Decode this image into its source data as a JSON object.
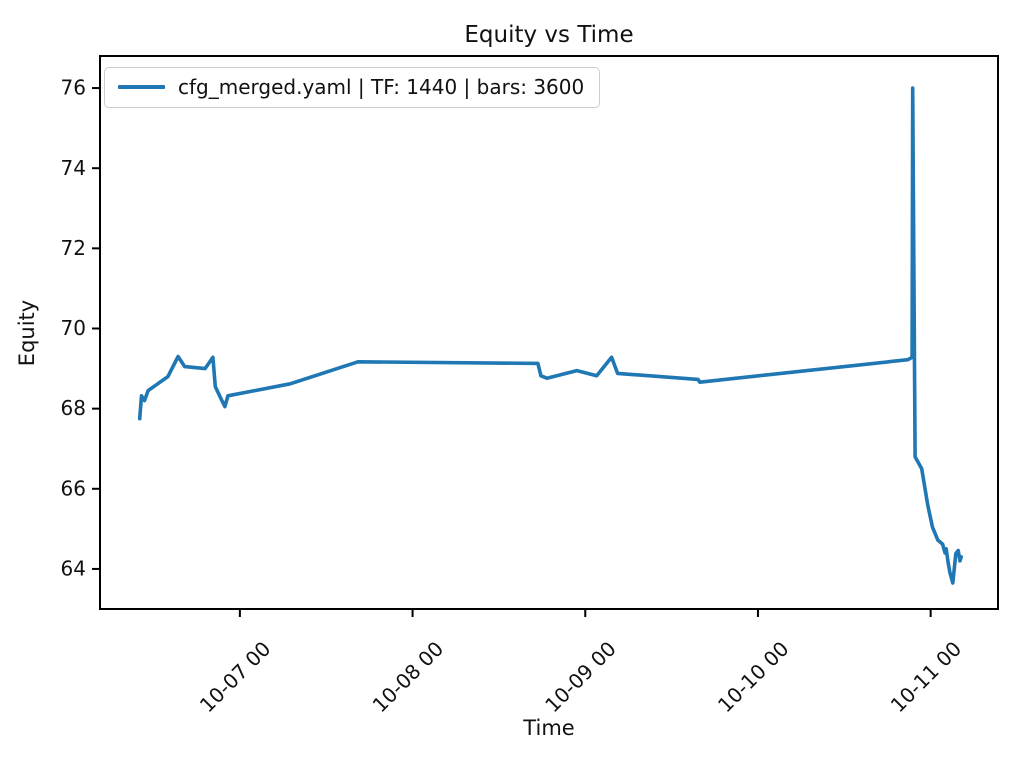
{
  "chart_data": {
    "type": "line",
    "title": "Equity vs Time",
    "xlabel": "Time",
    "ylabel": "Equity",
    "grid": false,
    "legend": {
      "position": "upper left",
      "entries": [
        "cfg_merged.yaml | TF: 1440 | bars: 3600"
      ]
    },
    "x_ticks": [
      {
        "day": 7,
        "label": "10-07 00"
      },
      {
        "day": 8,
        "label": "10-08 00"
      },
      {
        "day": 9,
        "label": "10-09 00"
      },
      {
        "day": 10,
        "label": "10-10 00"
      },
      {
        "day": 11,
        "label": "10-11 00"
      }
    ],
    "y_ticks": [
      64,
      66,
      68,
      70,
      72,
      74,
      76
    ],
    "xlim_days": [
      6.19,
      11.39
    ],
    "ylim": [
      63.0,
      76.8
    ],
    "series": [
      {
        "name": "cfg_merged.yaml | TF: 1440 | bars: 3600",
        "color": "#1f77b4",
        "points": [
          [
            "10-06 10:05",
            67.75
          ],
          [
            "10-06 10:20",
            68.32
          ],
          [
            "10-06 10:45",
            68.2
          ],
          [
            "10-06 11:15",
            68.45
          ],
          [
            "10-06 12:35",
            68.62
          ],
          [
            "10-06 14:00",
            68.8
          ],
          [
            "10-06 15:25",
            69.3
          ],
          [
            "10-06 16:20",
            69.05
          ],
          [
            "10-06 19:10",
            69.0
          ],
          [
            "10-06 20:15",
            69.28
          ],
          [
            "10-06 20:35",
            68.55
          ],
          [
            "10-06 21:30",
            68.2
          ],
          [
            "10-06 21:55",
            68.05
          ],
          [
            "10-06 22:20",
            68.32
          ],
          [
            "10-07 07:00",
            68.62
          ],
          [
            "10-07 16:25",
            69.17
          ],
          [
            "10-08 17:25",
            69.13
          ],
          [
            "10-08 17:50",
            68.82
          ],
          [
            "10-08 18:40",
            68.76
          ],
          [
            "10-08 22:50",
            68.95
          ],
          [
            "10-09 01:35",
            68.82
          ],
          [
            "10-09 03:40",
            69.28
          ],
          [
            "10-09 04:30",
            68.88
          ],
          [
            "10-09 15:40",
            68.73
          ],
          [
            "10-09 15:55",
            68.66
          ],
          [
            "10-10 20:50",
            69.22
          ],
          [
            "10-10 21:25",
            69.28
          ],
          [
            "10-10 21:30",
            76.0
          ],
          [
            "10-10 21:50",
            66.8
          ],
          [
            "10-10 22:45",
            66.5
          ],
          [
            "10-10 23:35",
            65.6
          ],
          [
            "10-11 00:15",
            65.05
          ],
          [
            "10-11 01:00",
            64.72
          ],
          [
            "10-11 01:40",
            64.62
          ],
          [
            "10-11 02:00",
            64.4
          ],
          [
            "10-11 02:10",
            64.5
          ],
          [
            "10-11 02:25",
            64.18
          ],
          [
            "10-11 02:40",
            63.92
          ],
          [
            "10-11 03:05",
            63.65
          ],
          [
            "10-11 03:30",
            64.38
          ],
          [
            "10-11 03:50",
            64.46
          ],
          [
            "10-11 04:05",
            64.2
          ],
          [
            "10-11 04:15",
            64.3
          ]
        ]
      }
    ],
    "line_color": "#1f77b4",
    "axis_color": "#000000"
  }
}
